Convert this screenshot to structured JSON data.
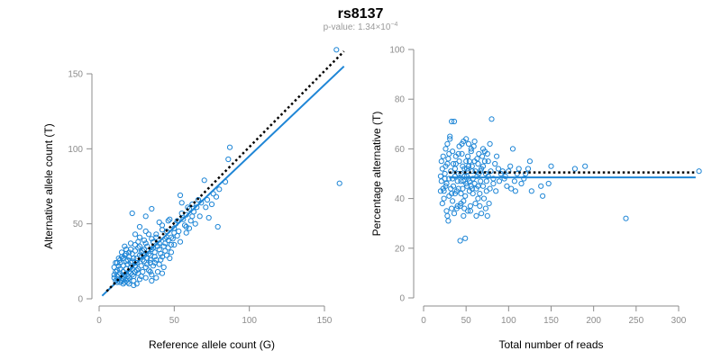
{
  "figure": {
    "title": "rs8137",
    "subtitle": {
      "prefix": "p-value: ",
      "mantissa": "1.34",
      "times": "×",
      "base": "10",
      "exponent": "−4"
    }
  },
  "colors": {
    "points": "#1f86d6",
    "fit_line": "#1f86d6",
    "reference_line": "#000000",
    "axis": "#8c8c8c"
  },
  "chart_data": [
    {
      "type": "scatter",
      "id": "left",
      "title": "",
      "xlabel": "Reference allele count (G)",
      "ylabel": "Alternative allele count (T)",
      "xlim": [
        0,
        165
      ],
      "ylim": [
        0,
        160
      ],
      "xticks": [
        0,
        50,
        100,
        150
      ],
      "yticks": [
        0,
        50,
        100,
        150
      ],
      "fit_line": {
        "x": [
          2,
          163
        ],
        "y": [
          2,
          155
        ],
        "style": "solid"
      },
      "reference_line": {
        "x": [
          5,
          163
        ],
        "y": [
          5,
          165
        ],
        "style": "dotted"
      },
      "points": [
        [
          158,
          166
        ],
        [
          160,
          77
        ],
        [
          87,
          101
        ],
        [
          86,
          93
        ],
        [
          78,
          68
        ],
        [
          73,
          54
        ],
        [
          79,
          48
        ],
        [
          70,
          79
        ],
        [
          66,
          66
        ],
        [
          62,
          63
        ],
        [
          60,
          60
        ],
        [
          55,
          64
        ],
        [
          54,
          69
        ],
        [
          58,
          56
        ],
        [
          56,
          53
        ],
        [
          52,
          52
        ],
        [
          58,
          48
        ],
        [
          50,
          47
        ],
        [
          48,
          41
        ],
        [
          44,
          37
        ],
        [
          46,
          52
        ],
        [
          40,
          51
        ],
        [
          42,
          46
        ],
        [
          38,
          41
        ],
        [
          45,
          41
        ],
        [
          36,
          38
        ],
        [
          33,
          43
        ],
        [
          35,
          33
        ],
        [
          31,
          37
        ],
        [
          34,
          29
        ],
        [
          29,
          32
        ],
        [
          27,
          35
        ],
        [
          28,
          28
        ],
        [
          30,
          25
        ],
        [
          32,
          23
        ],
        [
          37,
          31
        ],
        [
          39,
          35
        ],
        [
          41,
          30
        ],
        [
          25,
          27
        ],
        [
          24,
          22
        ],
        [
          22,
          25
        ],
        [
          21,
          21
        ],
        [
          20,
          18
        ],
        [
          19,
          23
        ],
        [
          18,
          20
        ],
        [
          17,
          16
        ],
        [
          16,
          18
        ],
        [
          15,
          14
        ],
        [
          14,
          17
        ],
        [
          13,
          13
        ],
        [
          12,
          15
        ],
        [
          11,
          12
        ],
        [
          10,
          14
        ],
        [
          12,
          11
        ],
        [
          14,
          11
        ],
        [
          16,
          13
        ],
        [
          18,
          12
        ],
        [
          20,
          14
        ],
        [
          22,
          16
        ],
        [
          24,
          18
        ],
        [
          26,
          20
        ],
        [
          28,
          22
        ],
        [
          26,
          17
        ],
        [
          23,
          15
        ],
        [
          21,
          17
        ],
        [
          19,
          15
        ],
        [
          17,
          11
        ],
        [
          15,
          12
        ],
        [
          13,
          16
        ],
        [
          11,
          18
        ],
        [
          10,
          21
        ],
        [
          12,
          24
        ],
        [
          14,
          26
        ],
        [
          16,
          22
        ],
        [
          18,
          25
        ],
        [
          20,
          28
        ],
        [
          22,
          30
        ],
        [
          24,
          32
        ],
        [
          26,
          34
        ],
        [
          28,
          31
        ],
        [
          30,
          29
        ],
        [
          32,
          27
        ],
        [
          34,
          24
        ],
        [
          36,
          22
        ],
        [
          38,
          26
        ],
        [
          40,
          23
        ],
        [
          42,
          28
        ],
        [
          44,
          32
        ],
        [
          46,
          34
        ],
        [
          48,
          31
        ],
        [
          50,
          36
        ],
        [
          47,
          27
        ],
        [
          43,
          21
        ],
        [
          39,
          18
        ],
        [
          35,
          16
        ],
        [
          31,
          14
        ],
        [
          27,
          13
        ],
        [
          23,
          12
        ],
        [
          19,
          11
        ],
        [
          25,
          10
        ],
        [
          29,
          18
        ],
        [
          33,
          19
        ],
        [
          37,
          24
        ],
        [
          41,
          26
        ],
        [
          45,
          29
        ],
        [
          49,
          40
        ],
        [
          53,
          45
        ],
        [
          57,
          49
        ],
        [
          61,
          52
        ],
        [
          63,
          58
        ],
        [
          22,
          57
        ],
        [
          34,
          18
        ],
        [
          30,
          39
        ],
        [
          26,
          38
        ],
        [
          24,
          43
        ],
        [
          20,
          31
        ],
        [
          18,
          33
        ],
        [
          15,
          28
        ],
        [
          13,
          22
        ],
        [
          11,
          24
        ],
        [
          17,
          35
        ],
        [
          21,
          37
        ],
        [
          27,
          41
        ],
        [
          31,
          45
        ],
        [
          35,
          12
        ],
        [
          38,
          14
        ],
        [
          42,
          17
        ],
        [
          25,
          24
        ],
        [
          29,
          26
        ],
        [
          33,
          30
        ],
        [
          36,
          34
        ],
        [
          40,
          37
        ],
        [
          44,
          40
        ],
        [
          48,
          36
        ],
        [
          52,
          42
        ],
        [
          54,
          38
        ],
        [
          58,
          44
        ],
        [
          60,
          47
        ],
        [
          64,
          50
        ],
        [
          67,
          55
        ],
        [
          71,
          61
        ],
        [
          75,
          63
        ],
        [
          16,
          10
        ],
        [
          19,
          13
        ],
        [
          22,
          20
        ],
        [
          25,
          19
        ],
        [
          28,
          15
        ],
        [
          31,
          21
        ],
        [
          34,
          26
        ],
        [
          37,
          28
        ],
        [
          40,
          33
        ],
        [
          43,
          35
        ],
        [
          46,
          39
        ],
        [
          50,
          44
        ],
        [
          20,
          10
        ],
        [
          23,
          9
        ],
        [
          14,
          20
        ],
        [
          12,
          19
        ],
        [
          10,
          16
        ],
        [
          13,
          27
        ],
        [
          15,
          31
        ],
        [
          17,
          29
        ],
        [
          19,
          26
        ],
        [
          21,
          24
        ],
        [
          23,
          27
        ],
        [
          27,
          29
        ],
        [
          30,
          33
        ],
        [
          32,
          35
        ],
        [
          35,
          40
        ],
        [
          38,
          43
        ],
        [
          42,
          49
        ],
        [
          45,
          45
        ],
        [
          47,
          53
        ],
        [
          51,
          50
        ],
        [
          55,
          57
        ],
        [
          59,
          61
        ],
        [
          62,
          55
        ],
        [
          65,
          61
        ],
        [
          68,
          64
        ],
        [
          72,
          66
        ],
        [
          76,
          70
        ],
        [
          80,
          73
        ],
        [
          84,
          78
        ],
        [
          35,
          60
        ],
        [
          31,
          55
        ],
        [
          27,
          48
        ],
        [
          24,
          36
        ],
        [
          21,
          33
        ],
        [
          18,
          30
        ],
        [
          16,
          27
        ],
        [
          14,
          24
        ]
      ]
    },
    {
      "type": "scatter",
      "id": "right",
      "title": "",
      "xlabel": "Total number of reads",
      "ylabel": "Percentage alternative (T)",
      "xlim": [
        0,
        320
      ],
      "ylim": [
        0,
        100
      ],
      "xticks": [
        0,
        50,
        100,
        150,
        200,
        250,
        300
      ],
      "yticks": [
        0,
        20,
        40,
        60,
        80,
        100
      ],
      "fit_line": {
        "x": [
          30,
          320
        ],
        "y": [
          48.5,
          48.5
        ],
        "style": "solid"
      },
      "reference_line": {
        "x": [
          30,
          320
        ],
        "y": [
          50.5,
          50.5
        ],
        "style": "dotted"
      },
      "points": [
        [
          324,
          51
        ],
        [
          238,
          32
        ],
        [
          190,
          53
        ],
        [
          178,
          52
        ],
        [
          150,
          53
        ],
        [
          147,
          46
        ],
        [
          140,
          41
        ],
        [
          138,
          45
        ],
        [
          127,
          43
        ],
        [
          125,
          55
        ],
        [
          123,
          52
        ],
        [
          120,
          50
        ],
        [
          118,
          48
        ],
        [
          115,
          46
        ],
        [
          110,
          50
        ],
        [
          107,
          47
        ],
        [
          105,
          60
        ],
        [
          103,
          44
        ],
        [
          100,
          51
        ],
        [
          96,
          49
        ],
        [
          93,
          51
        ],
        [
          91,
          50
        ],
        [
          88,
          52
        ],
        [
          86,
          57
        ],
        [
          84,
          54
        ],
        [
          82,
          48
        ],
        [
          80,
          72
        ],
        [
          78,
          44
        ],
        [
          76,
          55
        ],
        [
          74,
          47
        ],
        [
          72,
          59
        ],
        [
          70,
          60
        ],
        [
          68,
          52
        ],
        [
          66,
          42
        ],
        [
          65,
          50
        ],
        [
          64,
          45
        ],
        [
          63,
          56
        ],
        [
          62,
          33
        ],
        [
          61,
          38
        ],
        [
          60,
          55
        ],
        [
          59,
          61
        ],
        [
          58,
          48
        ],
        [
          57,
          51
        ],
        [
          56,
          45
        ],
        [
          55,
          35
        ],
        [
          54,
          43
        ],
        [
          53,
          53
        ],
        [
          52,
          57
        ],
        [
          51,
          49
        ],
        [
          50,
          46
        ],
        [
          49,
          41
        ],
        [
          48,
          52
        ],
        [
          47,
          39
        ],
        [
          46,
          44
        ],
        [
          45,
          62
        ],
        [
          44,
          50
        ],
        [
          43,
          37
        ],
        [
          42,
          55
        ],
        [
          41,
          58
        ],
        [
          40,
          47
        ],
        [
          39,
          36
        ],
        [
          38,
          54
        ],
        [
          37,
          49
        ],
        [
          36,
          71
        ],
        [
          35,
          45
        ],
        [
          34,
          59
        ],
        [
          33,
          42
        ],
        [
          32,
          51
        ],
        [
          31,
          64
        ],
        [
          30,
          48
        ],
        [
          29,
          56
        ],
        [
          28,
          33
        ],
        [
          27,
          46
        ],
        [
          26,
          53
        ],
        [
          25,
          50
        ],
        [
          24,
          43
        ],
        [
          23,
          57
        ],
        [
          22,
          52
        ],
        [
          21,
          47
        ],
        [
          20,
          49
        ],
        [
          33,
          71
        ],
        [
          31,
          65
        ],
        [
          28,
          62
        ],
        [
          26,
          60
        ],
        [
          24,
          40
        ],
        [
          22,
          38
        ],
        [
          27,
          35
        ],
        [
          29,
          31
        ],
        [
          33,
          36
        ],
        [
          36,
          34
        ],
        [
          40,
          37
        ],
        [
          44,
          38
        ],
        [
          48,
          36
        ],
        [
          52,
          35
        ],
        [
          55,
          37
        ],
        [
          43,
          23
        ],
        [
          49,
          24
        ],
        [
          47,
          33
        ],
        [
          51,
          45
        ],
        [
          53,
          48
        ],
        [
          57,
          44
        ],
        [
          60,
          46
        ],
        [
          63,
          49
        ],
        [
          67,
          51
        ],
        [
          70,
          53
        ],
        [
          73,
          50
        ],
        [
          76,
          49
        ],
        [
          79,
          51
        ],
        [
          82,
          46
        ],
        [
          85,
          43
        ],
        [
          89,
          47
        ],
        [
          95,
          48
        ],
        [
          98,
          45
        ],
        [
          102,
          53
        ],
        [
          108,
          43
        ],
        [
          112,
          52
        ],
        [
          34,
          48
        ],
        [
          37,
          52
        ],
        [
          39,
          43
        ],
        [
          41,
          50
        ],
        [
          44,
          47
        ],
        [
          46,
          53
        ],
        [
          48,
          49
        ],
        [
          50,
          55
        ],
        [
          52,
          51
        ],
        [
          54,
          47
        ],
        [
          56,
          59
        ],
        [
          58,
          42
        ],
        [
          62,
          44
        ],
        [
          64,
          40
        ],
        [
          66,
          37
        ],
        [
          68,
          34
        ],
        [
          71,
          40
        ],
        [
          73,
          36
        ],
        [
          75,
          33
        ],
        [
          77,
          38
        ],
        [
          25,
          48
        ],
        [
          23,
          44
        ],
        [
          21,
          55
        ],
        [
          20,
          43
        ],
        [
          30,
          58
        ],
        [
          32,
          44
        ],
        [
          35,
          54
        ],
        [
          38,
          57
        ],
        [
          42,
          61
        ],
        [
          45,
          58
        ],
        [
          47,
          63
        ],
        [
          50,
          64
        ],
        [
          53,
          62
        ],
        [
          56,
          60
        ],
        [
          60,
          63
        ],
        [
          65,
          58
        ],
        [
          69,
          57
        ],
        [
          72,
          55
        ],
        [
          75,
          58
        ],
        [
          78,
          62
        ],
        [
          26,
          45
        ],
        [
          28,
          54
        ],
        [
          30,
          41
        ],
        [
          34,
          39
        ],
        [
          37,
          42
        ],
        [
          41,
          44
        ],
        [
          44,
          42
        ],
        [
          47,
          47
        ],
        [
          51,
          52
        ],
        [
          54,
          55
        ],
        [
          57,
          53
        ],
        [
          61,
          51
        ],
        [
          64,
          54
        ],
        [
          67,
          47
        ],
        [
          70,
          45
        ],
        [
          74,
          43
        ]
      ]
    }
  ]
}
